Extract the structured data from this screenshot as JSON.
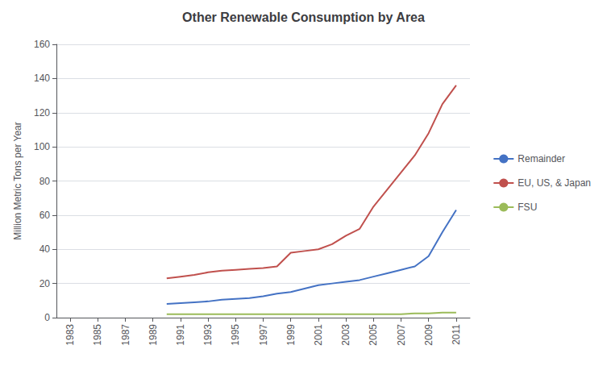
{
  "chart_data": {
    "type": "line",
    "title": "Other Renewable Consumption by Area",
    "ylabel": "Million Metric Tons per Year",
    "x": [
      1983,
      1985,
      1987,
      1989,
      1990,
      1991,
      1992,
      1993,
      1994,
      1995,
      1996,
      1997,
      1998,
      1999,
      2000,
      2001,
      2002,
      2003,
      2004,
      2005,
      2006,
      2007,
      2008,
      2009,
      2010,
      2011
    ],
    "series": [
      {
        "name": "Remainder",
        "color": "#4472C4",
        "values": [
          null,
          null,
          null,
          null,
          8,
          8.5,
          9,
          9.5,
          10.5,
          11,
          11.5,
          12.5,
          14,
          15,
          17,
          19,
          20,
          21,
          22,
          24,
          26,
          28,
          30,
          36,
          50,
          63
        ]
      },
      {
        "name": "EU, US, & Japan",
        "color": "#C0504D",
        "values": [
          null,
          null,
          null,
          null,
          23,
          24,
          25,
          26.5,
          27.5,
          28,
          28.5,
          29,
          30,
          38,
          39,
          40,
          43,
          48,
          52,
          65,
          75,
          85,
          95,
          108,
          125,
          136
        ]
      },
      {
        "name": "FSU",
        "color": "#9BBB59",
        "values": [
          null,
          null,
          null,
          null,
          2,
          2,
          2,
          2,
          2,
          2,
          2,
          2,
          2,
          2,
          2,
          2,
          2,
          2,
          2,
          2,
          2,
          2,
          2.5,
          2.5,
          3,
          3
        ]
      }
    ],
    "xlim": [
      1982,
      2012
    ],
    "xticks": [
      1983,
      1985,
      1987,
      1989,
      1991,
      1993,
      1995,
      1997,
      1999,
      2001,
      2003,
      2005,
      2007,
      2009,
      2011
    ],
    "ylim": [
      0,
      160
    ],
    "yticks": [
      0,
      20,
      40,
      60,
      80,
      100,
      120,
      140,
      160
    ],
    "grid": true,
    "legend": "right"
  }
}
